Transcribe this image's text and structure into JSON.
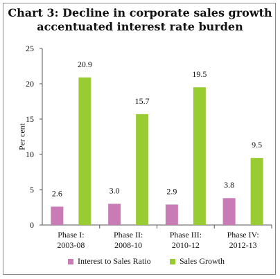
{
  "colors": {
    "series1": "#c97bb6",
    "series2": "#99cc33",
    "axis": "#555555"
  },
  "chart_data": {
    "type": "bar",
    "title_line1": "Chart 3: Decline in corporate sales growth",
    "title_line2": "accentuated interest rate burden",
    "ylabel": "Per cent",
    "ylim": [
      0,
      25
    ],
    "yticks": [
      "0",
      "5",
      "10",
      "15",
      "20",
      "25"
    ],
    "categories": [
      {
        "line1": "Phase I:",
        "line2": "2003-08"
      },
      {
        "line1": "Phase II:",
        "line2": "2008-10"
      },
      {
        "line1": "Phase III:",
        "line2": "2010-12"
      },
      {
        "line1": "Phase IV:",
        "line2": "2012-13"
      }
    ],
    "series": [
      {
        "name": "Interest to Sales Ratio",
        "values": [
          2.6,
          3.0,
          2.9,
          3.8
        ],
        "labels": [
          "2.6",
          "3.0",
          "2.9",
          "3.8"
        ]
      },
      {
        "name": "Sales Growth",
        "values": [
          20.9,
          15.7,
          19.5,
          9.5
        ],
        "labels": [
          "20.9",
          "15.7",
          "19.5",
          "9.5"
        ]
      }
    ],
    "legend": "bottom"
  }
}
